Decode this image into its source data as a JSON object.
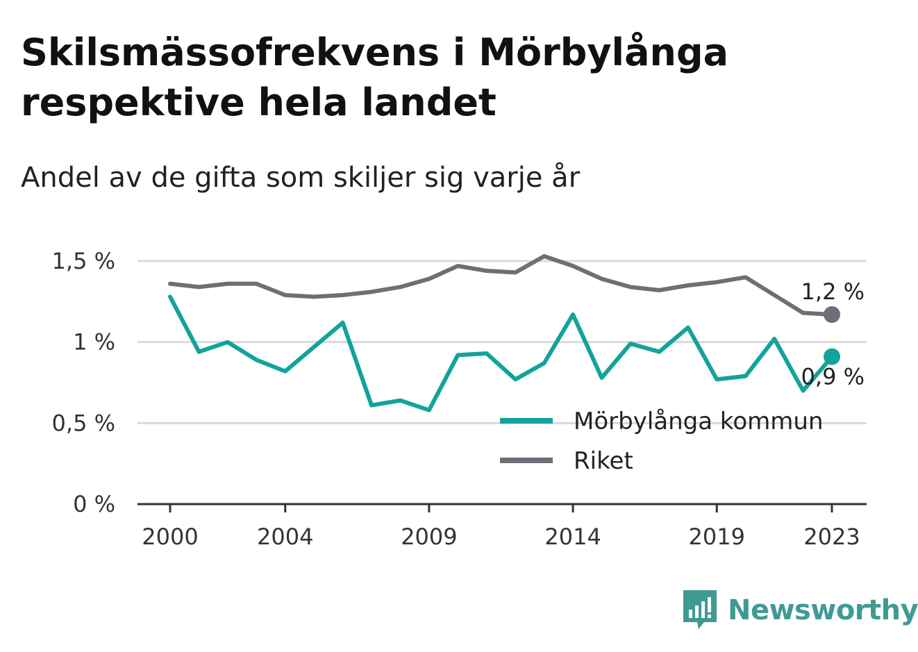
{
  "title": "Skilsmässofrekvens i Mörbylånga respektive hela landet",
  "subtitle": "Andel av de gifta som skiljer sig varje år",
  "brand": {
    "name": "Newsworthy",
    "color": "#3f9a93",
    "icon": "newsworthy-logo-icon"
  },
  "chart_data": {
    "type": "line",
    "title": "Skilsmässofrekvens i Mörbylånga respektive hela landet",
    "subtitle": "Andel av de gifta som skiljer sig varje år",
    "x": [
      2000,
      2001,
      2002,
      2003,
      2004,
      2005,
      2006,
      2007,
      2008,
      2009,
      2010,
      2011,
      2012,
      2013,
      2014,
      2015,
      2016,
      2017,
      2018,
      2019,
      2020,
      2021,
      2022,
      2023
    ],
    "x_ticks": [
      2000,
      2004,
      2009,
      2014,
      2019,
      2023
    ],
    "x_tick_labels": [
      "2000",
      "2004",
      "2009",
      "2014",
      "2019",
      "2023"
    ],
    "y_ticks": [
      0,
      0.5,
      1,
      1.5
    ],
    "y_tick_labels": [
      "0 %",
      "0,5 %",
      "1 %",
      "1,5 %"
    ],
    "ylim": [
      0,
      1.5
    ],
    "grid": true,
    "legend_position": "bottom-right",
    "series": [
      {
        "name": "Mörbylånga kommun",
        "color": "#12a39b",
        "values": [
          1.28,
          0.94,
          1.0,
          0.89,
          0.82,
          0.97,
          1.12,
          0.61,
          0.64,
          0.58,
          0.92,
          0.93,
          0.77,
          0.87,
          1.17,
          0.78,
          0.99,
          0.94,
          1.09,
          0.77,
          0.79,
          1.02,
          0.7,
          0.91
        ],
        "end_label": "0,9 %"
      },
      {
        "name": "Riket",
        "color": "#6e6e76",
        "values": [
          1.36,
          1.34,
          1.36,
          1.36,
          1.29,
          1.28,
          1.29,
          1.31,
          1.34,
          1.39,
          1.47,
          1.44,
          1.43,
          1.53,
          1.47,
          1.39,
          1.34,
          1.32,
          1.35,
          1.37,
          1.4,
          1.29,
          1.18,
          1.17
        ],
        "end_label": "1,2 %"
      }
    ]
  }
}
